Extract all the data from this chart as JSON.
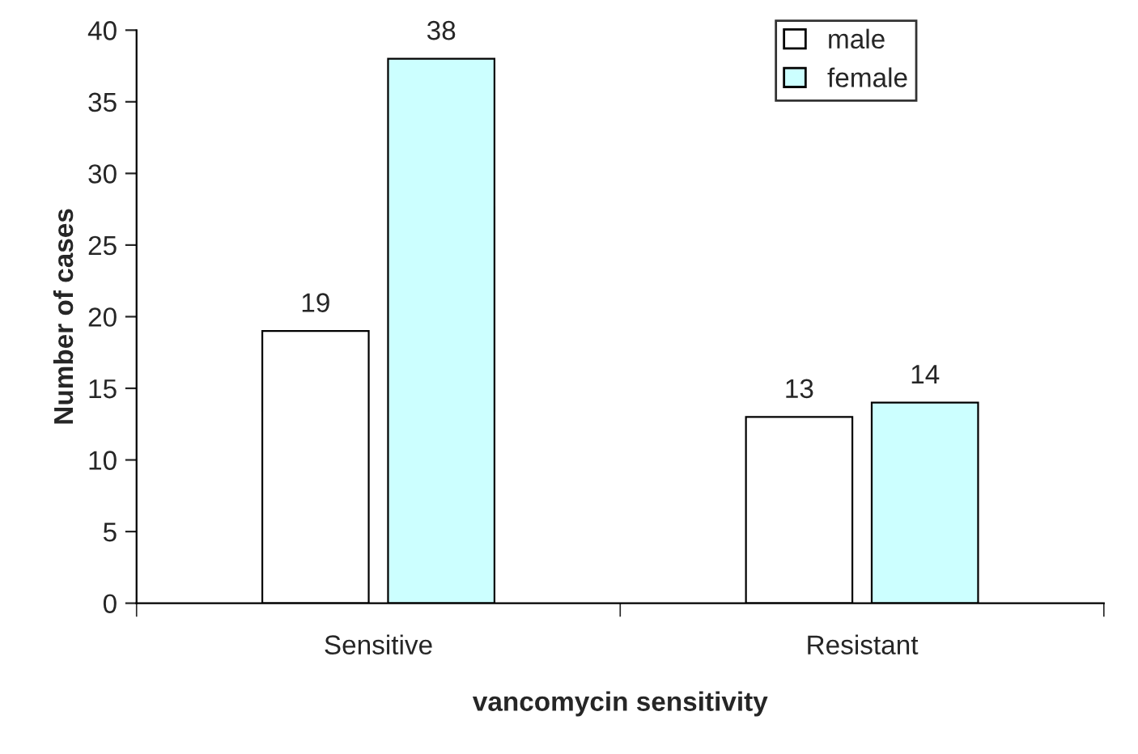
{
  "chart_data": {
    "type": "bar",
    "xlabel": "vancomycin sensitivity",
    "ylabel": "Number of cases",
    "categories": [
      "Sensitive",
      "Resistant"
    ],
    "series": [
      {
        "name": "male",
        "color": "#ffffff",
        "values": [
          19,
          13
        ]
      },
      {
        "name": "female",
        "color": "#ccffff",
        "values": [
          38,
          14
        ]
      }
    ],
    "ylim": [
      0,
      40
    ],
    "yticks": [
      0,
      5,
      10,
      15,
      20,
      25,
      30,
      35,
      40
    ],
    "grid": false,
    "legend": "top right",
    "data_labels": true
  }
}
